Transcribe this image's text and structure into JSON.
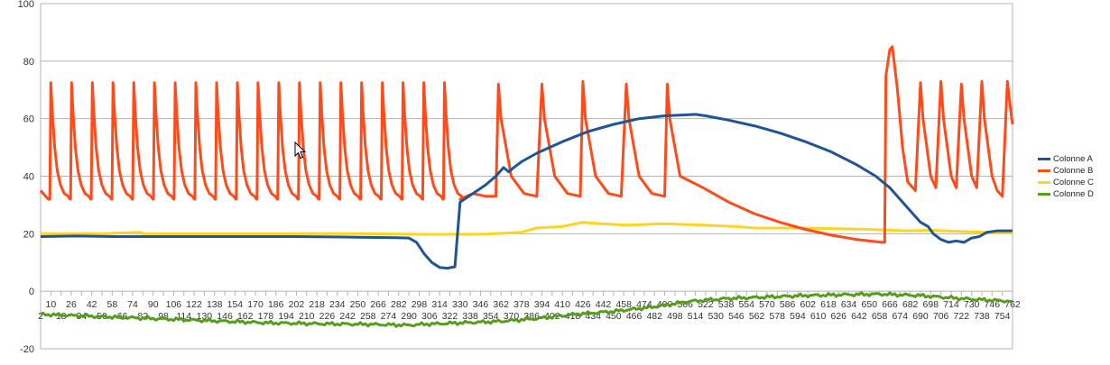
{
  "chart_data": {
    "type": "line",
    "title": "",
    "xlabel": "",
    "ylabel": "",
    "ylim": [
      -20,
      100
    ],
    "y_ticks": [
      -20,
      0,
      20,
      40,
      60,
      80,
      100
    ],
    "x_range": [
      2,
      762
    ],
    "x_ticks_top": [
      10,
      26,
      42,
      58,
      74,
      90,
      106,
      122,
      138,
      154,
      170,
      186,
      202,
      218,
      234,
      250,
      266,
      282,
      298,
      314,
      330,
      346,
      362,
      378,
      394,
      410,
      426,
      442,
      458,
      474,
      490,
      506,
      522,
      538,
      554,
      570,
      586,
      602,
      618,
      634,
      650,
      666,
      682,
      698,
      714,
      730,
      746,
      762
    ],
    "x_ticks_bottom": [
      2,
      18,
      34,
      50,
      66,
      82,
      98,
      114,
      130,
      146,
      162,
      178,
      194,
      210,
      226,
      242,
      258,
      274,
      290,
      306,
      322,
      338,
      354,
      370,
      386,
      402,
      418,
      434,
      450,
      466,
      482,
      498,
      514,
      530,
      546,
      562,
      578,
      594,
      610,
      626,
      642,
      658,
      674,
      690,
      706,
      722,
      738,
      754
    ],
    "grid": true,
    "legend_position": "right",
    "series": [
      {
        "name": "Colonne A",
        "color": "#1f5596",
        "points": [
          [
            2,
            19
          ],
          [
            30,
            19.2
          ],
          [
            60,
            19
          ],
          [
            100,
            19
          ],
          [
            150,
            19
          ],
          [
            200,
            19
          ],
          [
            250,
            18.8
          ],
          [
            280,
            18.6
          ],
          [
            290,
            18.5
          ],
          [
            296,
            17
          ],
          [
            302,
            13
          ],
          [
            308,
            10
          ],
          [
            314,
            8.3
          ],
          [
            320,
            8
          ],
          [
            326,
            8.5
          ],
          [
            328,
            20
          ],
          [
            330,
            31
          ],
          [
            340,
            34
          ],
          [
            350,
            37
          ],
          [
            358,
            40
          ],
          [
            364,
            43
          ],
          [
            368,
            41.5
          ],
          [
            372,
            43
          ],
          [
            378,
            45
          ],
          [
            390,
            48
          ],
          [
            410,
            52
          ],
          [
            430,
            55.5
          ],
          [
            450,
            58
          ],
          [
            470,
            60
          ],
          [
            490,
            61
          ],
          [
            506,
            61.3
          ],
          [
            514,
            61.5
          ],
          [
            522,
            61
          ],
          [
            540,
            59.5
          ],
          [
            560,
            57.5
          ],
          [
            580,
            55
          ],
          [
            600,
            52
          ],
          [
            620,
            48.5
          ],
          [
            640,
            44
          ],
          [
            655,
            40
          ],
          [
            666,
            36
          ],
          [
            676,
            31
          ],
          [
            686,
            26
          ],
          [
            690,
            24
          ],
          [
            696,
            22.5
          ],
          [
            700,
            20
          ],
          [
            706,
            18
          ],
          [
            712,
            17
          ],
          [
            718,
            17.5
          ],
          [
            724,
            17
          ],
          [
            730,
            18.5
          ],
          [
            736,
            19
          ],
          [
            742,
            20.5
          ],
          [
            750,
            21
          ],
          [
            762,
            21
          ]
        ]
      },
      {
        "name": "Colonne B",
        "color": "#ff4a1a",
        "spikes": {
          "first_peak_x": 10,
          "period": 16.2,
          "peak": 72.5,
          "trough": 32,
          "start_value": 35,
          "last_peak_x": 320,
          "decay_to_x": 330
        },
        "points_mid": [
          [
            330,
            32
          ],
          [
            340,
            34
          ],
          [
            350,
            33
          ],
          [
            358,
            33
          ],
          [
            360,
            72
          ],
          [
            362,
            60
          ],
          [
            370,
            40
          ],
          [
            380,
            34
          ],
          [
            390,
            33
          ],
          [
            394,
            72
          ],
          [
            396,
            60
          ],
          [
            404,
            40
          ],
          [
            414,
            34
          ],
          [
            424,
            33
          ],
          [
            426,
            73
          ],
          [
            428,
            60
          ],
          [
            436,
            40
          ],
          [
            446,
            34
          ],
          [
            456,
            33
          ],
          [
            460,
            72
          ],
          [
            462,
            60
          ],
          [
            470,
            40
          ],
          [
            480,
            34
          ],
          [
            490,
            33
          ],
          [
            492,
            72
          ],
          [
            494,
            60
          ],
          [
            502,
            40
          ],
          [
            520,
            36
          ],
          [
            540,
            31
          ],
          [
            560,
            27
          ],
          [
            580,
            24
          ],
          [
            600,
            21.5
          ],
          [
            620,
            19.5
          ],
          [
            640,
            18
          ],
          [
            660,
            17
          ]
        ],
        "points_end": [
          [
            662,
            17
          ],
          [
            663,
            75
          ],
          [
            666,
            84
          ],
          [
            668,
            85
          ],
          [
            672,
            70
          ],
          [
            676,
            50
          ],
          [
            680,
            38
          ],
          [
            686,
            35
          ],
          [
            690,
            72.5
          ],
          [
            692,
            60
          ],
          [
            698,
            40
          ],
          [
            702,
            36
          ],
          [
            706,
            73
          ],
          [
            708,
            60
          ],
          [
            714,
            40
          ],
          [
            718,
            36
          ],
          [
            722,
            72
          ],
          [
            724,
            60
          ],
          [
            730,
            40
          ],
          [
            734,
            36
          ],
          [
            738,
            73
          ],
          [
            740,
            60
          ],
          [
            746,
            40
          ],
          [
            750,
            35
          ],
          [
            754,
            33
          ],
          [
            758,
            73
          ],
          [
            760,
            65
          ],
          [
            762,
            58
          ]
        ]
      },
      {
        "name": "Colonne C",
        "color": "#ffd320",
        "points": [
          [
            2,
            20
          ],
          [
            50,
            20
          ],
          [
            80,
            20.5
          ],
          [
            82,
            20
          ],
          [
            150,
            20
          ],
          [
            250,
            20
          ],
          [
            300,
            19.8
          ],
          [
            350,
            19.9
          ],
          [
            378,
            20.5
          ],
          [
            390,
            22
          ],
          [
            410,
            22.5
          ],
          [
            426,
            24
          ],
          [
            440,
            23.5
          ],
          [
            460,
            23
          ],
          [
            490,
            23.5
          ],
          [
            520,
            23
          ],
          [
            546,
            22.5
          ],
          [
            560,
            22
          ],
          [
            590,
            22
          ],
          [
            620,
            21.8
          ],
          [
            650,
            21.5
          ],
          [
            680,
            21
          ],
          [
            700,
            21.2
          ],
          [
            720,
            20.8
          ],
          [
            740,
            20.5
          ],
          [
            762,
            20.3
          ]
        ]
      },
      {
        "name": "Colonne D",
        "color": "#579d1c",
        "points": [
          [
            2,
            -8
          ],
          [
            30,
            -8.5
          ],
          [
            60,
            -9
          ],
          [
            90,
            -9.5
          ],
          [
            120,
            -10
          ],
          [
            150,
            -10.5
          ],
          [
            180,
            -11
          ],
          [
            220,
            -11.3
          ],
          [
            260,
            -11.5
          ],
          [
            290,
            -11.8
          ],
          [
            300,
            -11.5
          ],
          [
            330,
            -11
          ],
          [
            360,
            -10.5
          ],
          [
            390,
            -9.5
          ],
          [
            420,
            -8
          ],
          [
            450,
            -7
          ],
          [
            480,
            -5.5
          ],
          [
            510,
            -3.5
          ],
          [
            540,
            -2.5
          ],
          [
            570,
            -2
          ],
          [
            600,
            -1.5
          ],
          [
            630,
            -1.2
          ],
          [
            660,
            -1
          ],
          [
            690,
            -1.5
          ],
          [
            720,
            -2.5
          ],
          [
            740,
            -3
          ],
          [
            762,
            -3.5
          ]
        ]
      }
    ]
  }
}
